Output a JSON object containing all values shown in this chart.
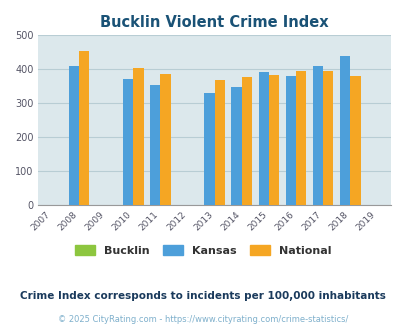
{
  "title": "Bucklin Violent Crime Index",
  "title_color": "#1a5276",
  "subtitle": "Crime Index corresponds to incidents per 100,000 inhabitants",
  "subtitle_color": "#1a3a5c",
  "footer": "© 2025 CityRating.com - https://www.cityrating.com/crime-statistics/",
  "footer_color": "#7fb0cc",
  "years": [
    2007,
    2008,
    2009,
    2010,
    2011,
    2012,
    2013,
    2014,
    2015,
    2016,
    2017,
    2018,
    2019
  ],
  "kansas": {
    "years": [
      2008,
      2010,
      2011,
      2013,
      2014,
      2015,
      2016,
      2017,
      2018
    ],
    "values": [
      411,
      370,
      355,
      330,
      349,
      391,
      380,
      411,
      440
    ],
    "color": "#4d9fda"
  },
  "national": {
    "years": [
      2008,
      2010,
      2011,
      2013,
      2014,
      2015,
      2016,
      2017,
      2018
    ],
    "values": [
      454,
      405,
      387,
      368,
      376,
      383,
      395,
      394,
      380
    ],
    "color": "#f5a623"
  },
  "ylim": [
    0,
    500
  ],
  "yticks": [
    0,
    100,
    200,
    300,
    400,
    500
  ],
  "bg_color": "#dce8ec",
  "grid_color": "#b8cdd4",
  "bar_width": 0.38,
  "legend_labels": [
    "Bucklin",
    "Kansas",
    "National"
  ],
  "legend_colors": [
    "#8dc63f",
    "#4d9fda",
    "#f5a623"
  ]
}
